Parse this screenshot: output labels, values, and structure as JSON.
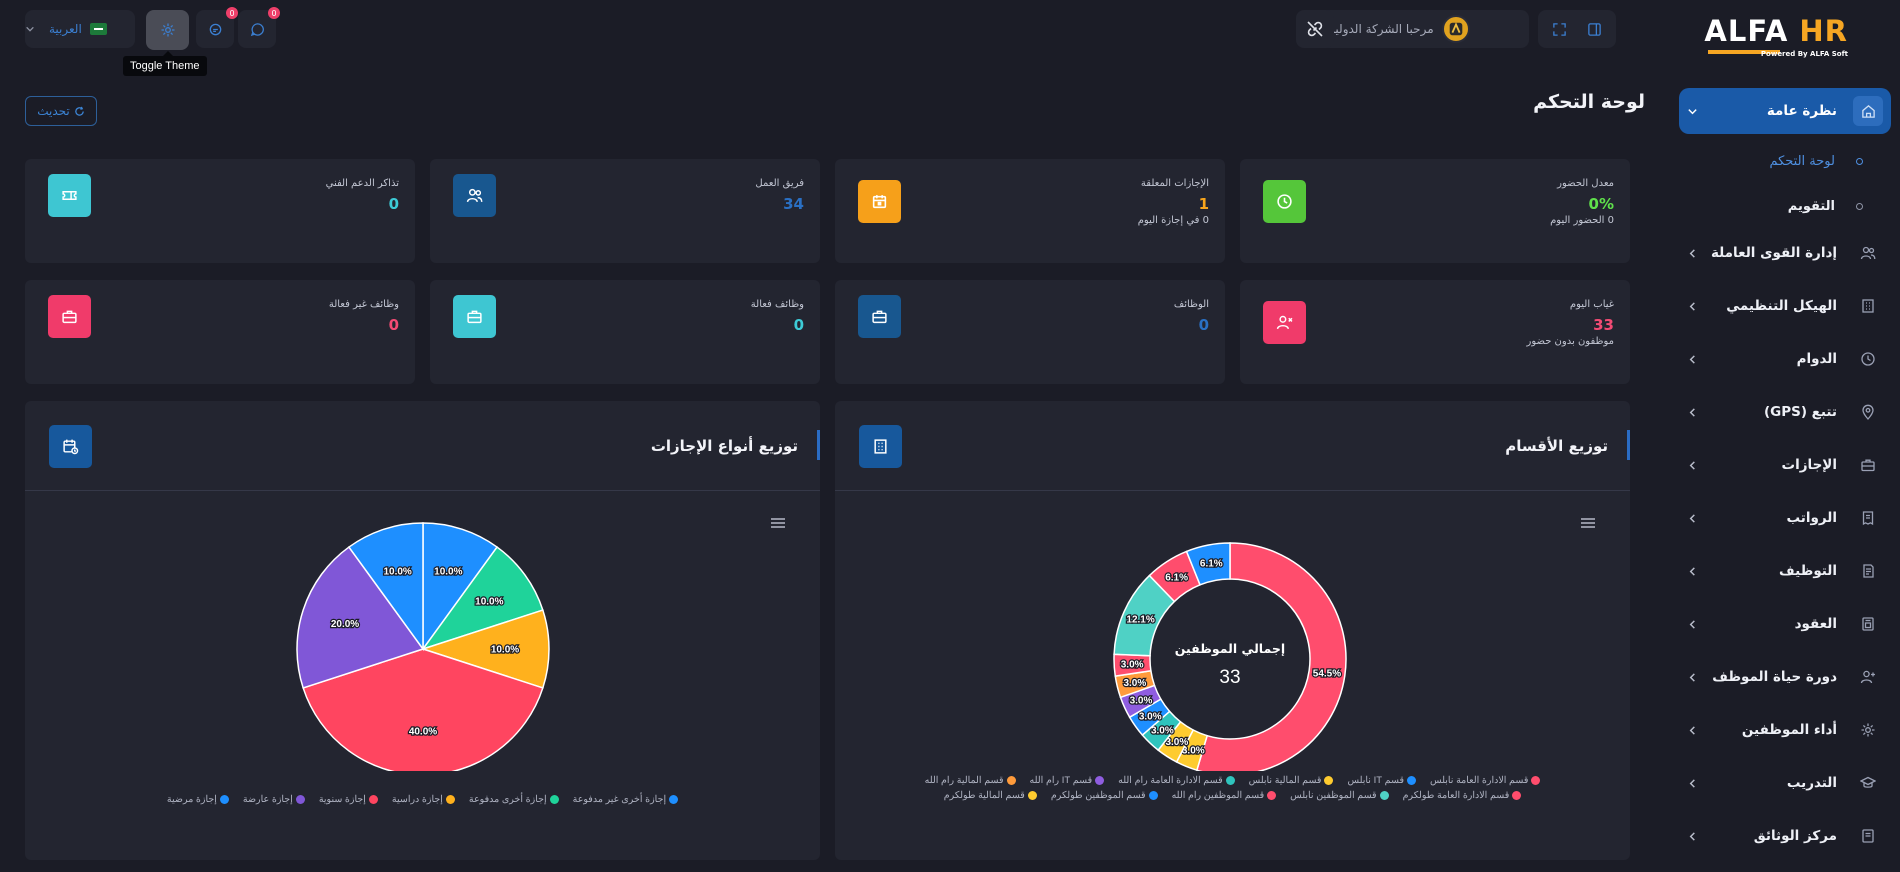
{
  "sidebar": {
    "logo": {
      "alfa": "ALFA",
      "hr": "HR",
      "tagline": "Powered By ALFA Soft"
    },
    "items": [
      {
        "label": "نظرة عامة",
        "icon": "home-icon",
        "active": true
      },
      {
        "label": "إدارة القوى العاملة",
        "icon": "users-icon"
      },
      {
        "label": "الهيكل التنظيمي",
        "icon": "building-icon"
      },
      {
        "label": "الدوام",
        "icon": "clock-icon"
      },
      {
        "label": "تتبع (GPS)",
        "icon": "location-pin-icon"
      },
      {
        "label": "الإجازات",
        "icon": "briefcase-icon"
      },
      {
        "label": "الرواتب",
        "icon": "receipt-icon"
      },
      {
        "label": "التوظيف",
        "icon": "document-icon"
      },
      {
        "label": "العقود",
        "icon": "contract-icon"
      },
      {
        "label": "دورة حياة الموظف",
        "icon": "user-plus-icon"
      },
      {
        "label": "أداء الموظفين",
        "icon": "performance-icon"
      },
      {
        "label": "التدريب",
        "icon": "graduation-cap-icon"
      },
      {
        "label": "مركز الوثائق",
        "icon": "folder-icon"
      }
    ],
    "subitems": [
      {
        "label": "لوحة التحكم",
        "current": true
      },
      {
        "label": "التقويم",
        "current": false
      }
    ]
  },
  "topbar": {
    "company_greeting": "مرحبا الشركة الدولية",
    "language": "العربية",
    "notifications_count": "0",
    "messages_count": "0",
    "tooltip": "Toggle Theme"
  },
  "page": {
    "title": "لوحة التحكم",
    "refresh_label": "تحديث"
  },
  "cards": [
    {
      "title": "معدل الحضور",
      "value": "0%",
      "sub": "0 الحضور اليوم",
      "value_color": "#5fe04b",
      "icon": "clock-icon",
      "icon_bg": "#55c63a"
    },
    {
      "title": "الإجازات المعلقة",
      "value": "1",
      "sub": "0 في إجازة اليوم",
      "value_color": "#f7a51c",
      "icon": "calendar-icon",
      "icon_bg": "#f6a01a"
    },
    {
      "title": "فريق العمل",
      "value": "34",
      "sub": "",
      "value_color": "#2a70c4",
      "icon": "users-icon",
      "icon_bg": "#18578f"
    },
    {
      "title": "تذاكر الدعم الفني",
      "value": "0",
      "sub": "",
      "value_color": "#3dcbd6",
      "icon": "ticket-icon",
      "icon_bg": "#3ec6d2"
    },
    {
      "title": "غياب اليوم",
      "value": "33",
      "sub": "موظفون بدون حضور",
      "value_color": "#f34b74",
      "icon": "user-x-icon",
      "icon_bg": "#f03b6a"
    },
    {
      "title": "الوظائف",
      "value": "0",
      "sub": "",
      "value_color": "#2a70c4",
      "icon": "briefcase-icon",
      "icon_bg": "#18578f"
    },
    {
      "title": "وظائف فعالة",
      "value": "0",
      "sub": "",
      "value_color": "#3dcbd6",
      "icon": "briefcase-icon",
      "icon_bg": "#3ec6d2"
    },
    {
      "title": "وظائف غير فعالة",
      "value": "0",
      "sub": "",
      "value_color": "#f34b74",
      "icon": "briefcase-icon",
      "icon_bg": "#f03b6a"
    }
  ],
  "chart_data": [
    {
      "type": "pie",
      "variant": "donut",
      "title": "توزيع الأقسام",
      "center_label": "إجمالي الموظفين",
      "center_value": "33",
      "categories": [
        "قسم الادارة العامة نابلس",
        "قسم IT نابلس",
        "قسم المالية نابلس",
        "قسم الادارة العامة رام الله",
        "قسم IT رام الله",
        "قسم المالية رام الله",
        "قسم الادارة العامة طولكرم",
        "قسم الموظفين نابلس",
        "قسم الموظفين رام الله",
        "قسم الموظفين طولكرم",
        "قسم المالية طولكرم"
      ],
      "values": [
        54.5,
        3.0,
        3.0,
        3.0,
        3.0,
        3.0,
        3.0,
        12.1,
        6.1,
        6.1,
        3.0
      ],
      "colors": [
        "#ff4d6d",
        "#1e8fff",
        "#fecb2f",
        "#2fc4bd",
        "#8f5de0",
        "#ff9b3b",
        "#ff4d6d",
        "#4fd1c5",
        "#ff4d6d",
        "#1e8fff",
        "#fecb2f"
      ],
      "data_labels": [
        "54.5%",
        "3.0%",
        "3.0%",
        "3.0%",
        "3.0%",
        "3.0%",
        "3.0%",
        "12.1%",
        "6.1%",
        "6.1%",
        "3.0%"
      ],
      "legend_placement": "bottom"
    },
    {
      "type": "pie",
      "title": "توزيع أنواع الإجازات",
      "categories": [
        "إجازة أخرى غير مدفوعة",
        "إجازة أخرى مدفوعة",
        "إجازة دراسية",
        "إجازة سنوية",
        "إجازة عارضة",
        "إجازة مرضية"
      ],
      "values": [
        10.0,
        10.0,
        10.0,
        40.0,
        20.0,
        10.0
      ],
      "colors": [
        "#1e8fff",
        "#1fd39a",
        "#ffb11d",
        "#ff4560",
        "#8057d7",
        "#1e8fff"
      ],
      "data_labels": [
        "10.0%",
        "10.0%",
        "10.0%",
        "40.0%",
        "20.0%",
        "10.0%"
      ],
      "legend_placement": "bottom"
    }
  ]
}
